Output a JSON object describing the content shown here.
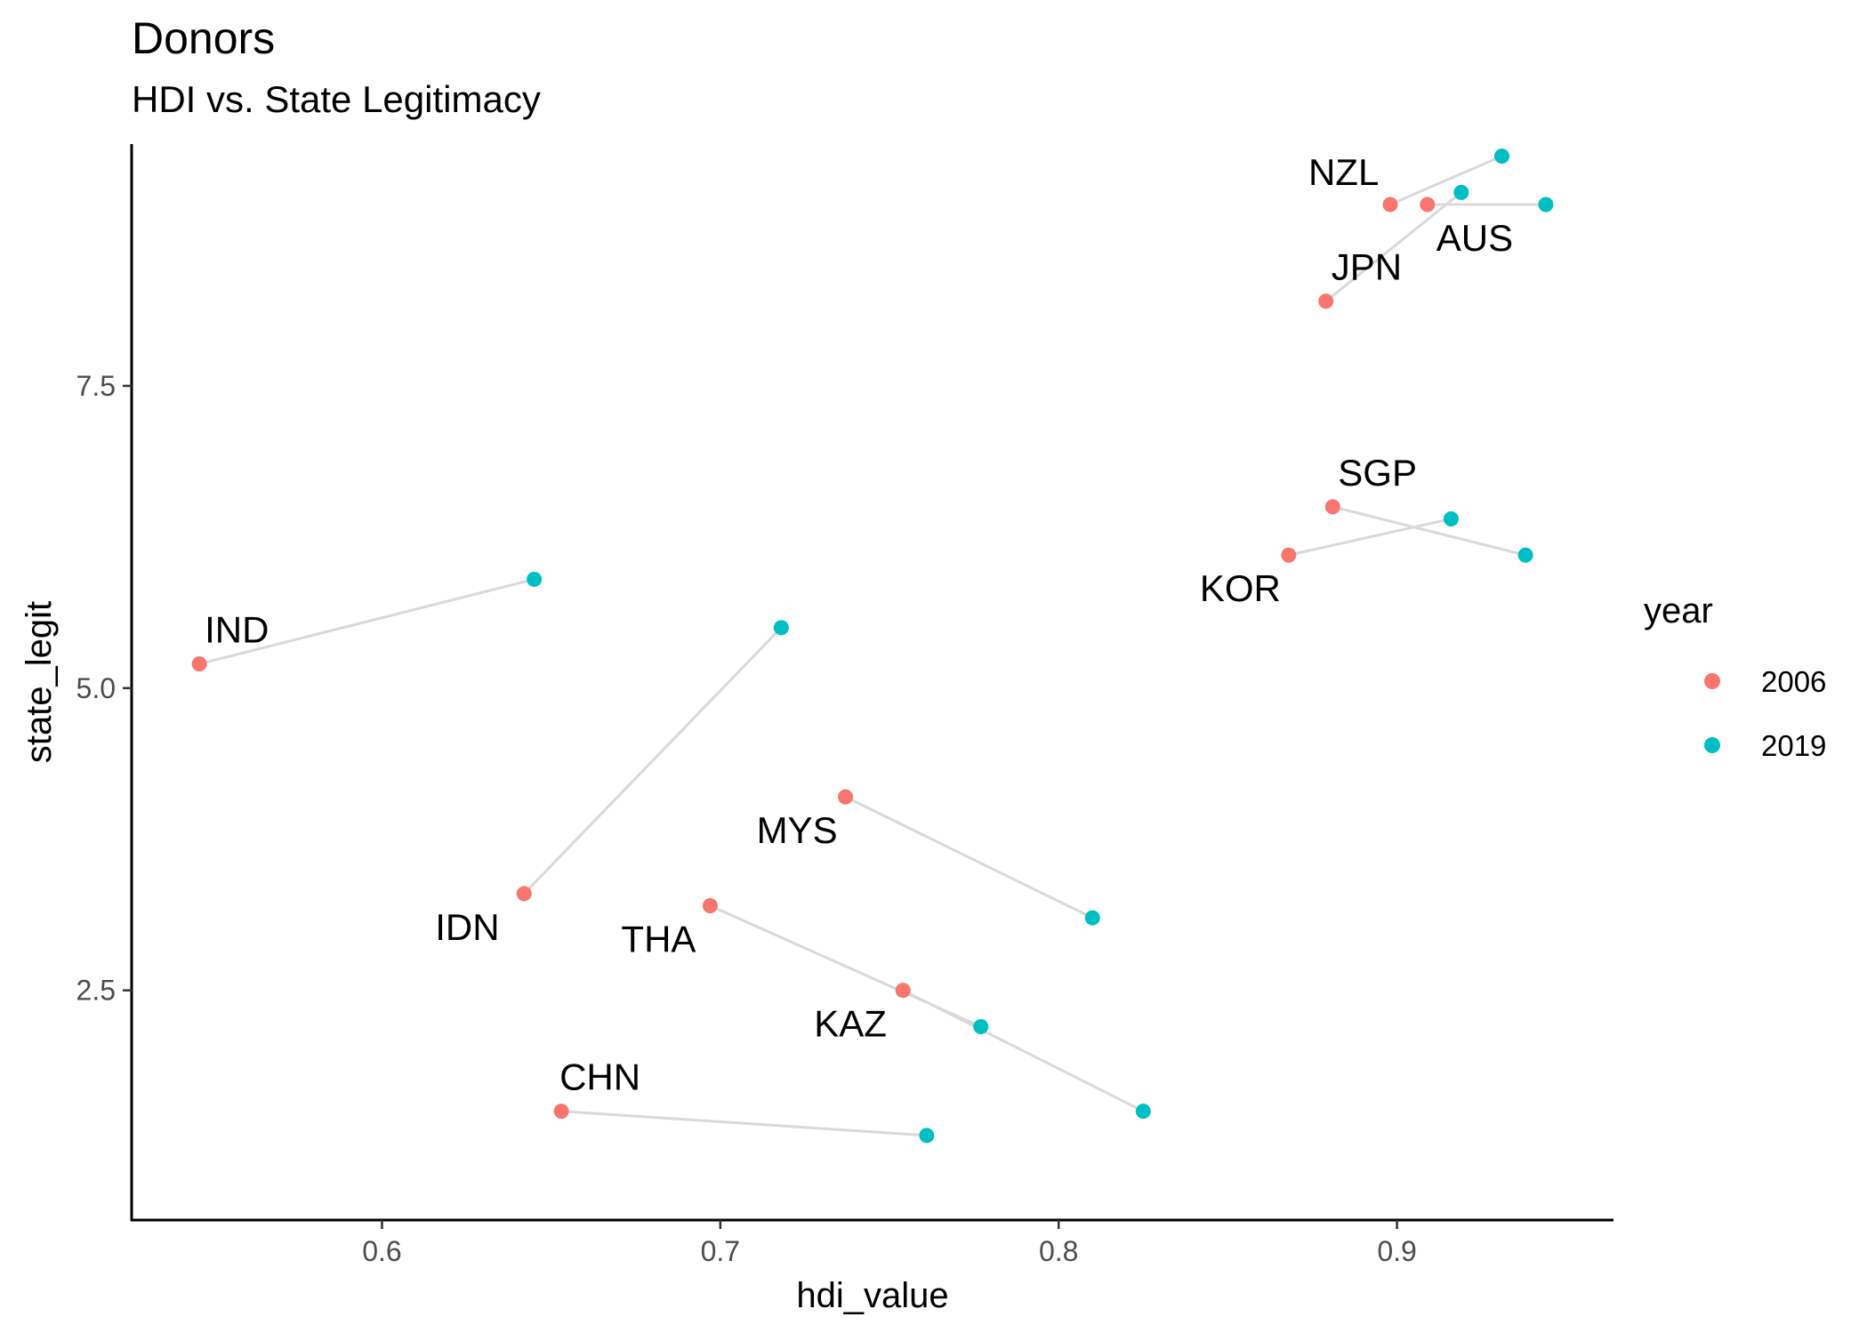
{
  "chart_data": {
    "type": "scatter",
    "title": "Donors",
    "subtitle": "HDI vs. State Legitimacy",
    "xlabel": "hdi_value",
    "ylabel": "state_legit",
    "xlim": [
      0.526,
      0.964
    ],
    "ylim": [
      0.6,
      9.5
    ],
    "x_ticks": [
      0.6,
      0.7,
      0.8,
      0.9
    ],
    "x_tick_labels": [
      "0.6",
      "0.7",
      "0.8",
      "0.9"
    ],
    "y_ticks": [
      2.5,
      5.0,
      7.5
    ],
    "y_tick_labels": [
      "2.5",
      "5.0",
      "7.5"
    ],
    "grid": false,
    "legend": {
      "title": "year",
      "placement": "right",
      "entries": [
        {
          "label": "2006",
          "color": "#F8766D"
        },
        {
          "label": "2019",
          "color": "#00BFC4"
        }
      ]
    },
    "connector_color": "#d9d9d9",
    "series": [
      {
        "name": "2006",
        "color": "#F8766D",
        "points": [
          {
            "country": "NZL",
            "x": 0.898,
            "y": 9.0
          },
          {
            "country": "AUS",
            "x": 0.909,
            "y": 9.0
          },
          {
            "country": "JPN",
            "x": 0.879,
            "y": 8.2
          },
          {
            "country": "SGP",
            "x": 0.881,
            "y": 6.5
          },
          {
            "country": "KOR",
            "x": 0.868,
            "y": 6.1
          },
          {
            "country": "IND",
            "x": 0.546,
            "y": 5.2
          },
          {
            "country": "IDN",
            "x": 0.642,
            "y": 3.3
          },
          {
            "country": "MYS",
            "x": 0.737,
            "y": 4.1
          },
          {
            "country": "THA",
            "x": 0.697,
            "y": 3.2
          },
          {
            "country": "KAZ",
            "x": 0.754,
            "y": 2.5
          },
          {
            "country": "CHN",
            "x": 0.653,
            "y": 1.5
          }
        ]
      },
      {
        "name": "2019",
        "color": "#00BFC4",
        "points": [
          {
            "country": "NZL",
            "x": 0.931,
            "y": 9.4
          },
          {
            "country": "AUS",
            "x": 0.944,
            "y": 9.0
          },
          {
            "country": "JPN",
            "x": 0.919,
            "y": 9.1
          },
          {
            "country": "SGP",
            "x": 0.938,
            "y": 6.1
          },
          {
            "country": "KOR",
            "x": 0.916,
            "y": 6.4
          },
          {
            "country": "IND",
            "x": 0.645,
            "y": 5.9
          },
          {
            "country": "IDN",
            "x": 0.718,
            "y": 5.5
          },
          {
            "country": "MYS",
            "x": 0.81,
            "y": 3.1
          },
          {
            "country": "THA",
            "x": 0.777,
            "y": 2.2
          },
          {
            "country": "KAZ",
            "x": 0.825,
            "y": 1.5
          },
          {
            "country": "CHN",
            "x": 0.761,
            "y": 1.3
          }
        ]
      }
    ],
    "labels": [
      {
        "text": "NZL",
        "anchor_x": 0.898,
        "anchor_y": 9.0,
        "position": "above-left"
      },
      {
        "text": "AUS",
        "anchor_x": 0.909,
        "anchor_y": 9.0,
        "position": "below-right"
      },
      {
        "text": "JPN",
        "anchor_x": 0.879,
        "anchor_y": 8.2,
        "position": "above-right"
      },
      {
        "text": "SGP",
        "anchor_x": 0.881,
        "anchor_y": 6.5,
        "position": "above-right"
      },
      {
        "text": "KOR",
        "anchor_x": 0.868,
        "anchor_y": 6.1,
        "position": "below-left"
      },
      {
        "text": "IND",
        "anchor_x": 0.546,
        "anchor_y": 5.2,
        "position": "above-right"
      },
      {
        "text": "IDN",
        "anchor_x": 0.642,
        "anchor_y": 3.3,
        "position": "below-left"
      },
      {
        "text": "MYS",
        "anchor_x": 0.737,
        "anchor_y": 4.1,
        "position": "below-left"
      },
      {
        "text": "THA",
        "anchor_x": 0.697,
        "anchor_y": 3.2,
        "position": "below-left"
      },
      {
        "text": "KAZ",
        "anchor_x": 0.754,
        "anchor_y": 2.5,
        "position": "below-left"
      },
      {
        "text": "CHN",
        "anchor_x": 0.653,
        "anchor_y": 1.5,
        "position": "above"
      }
    ]
  }
}
